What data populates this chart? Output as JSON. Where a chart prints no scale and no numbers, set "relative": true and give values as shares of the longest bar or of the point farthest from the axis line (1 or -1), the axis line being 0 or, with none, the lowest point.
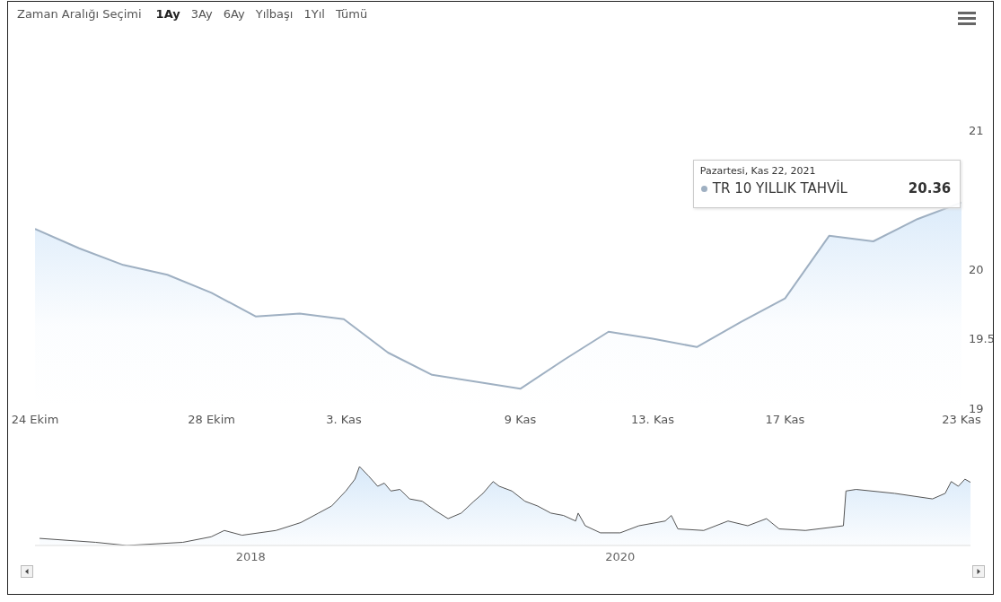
{
  "chart_data": [
    {
      "type": "area",
      "categories": [
        "24 Ekim",
        null,
        null,
        null,
        "28 Ekim",
        null,
        null,
        "3. Kas",
        null,
        null,
        null,
        "9 Kas",
        null,
        null,
        "13. Kas",
        null,
        null,
        "17 Kas",
        null,
        null,
        null,
        "23 Kas"
      ],
      "series": [
        {
          "name": "TR 10 YILLIK TAHVİL",
          "color": "#9fb0c2",
          "values": [
            20.29,
            20.15,
            20.03,
            19.96,
            19.83,
            19.66,
            19.68,
            19.64,
            19.4,
            19.24,
            19.19,
            19.14,
            19.35,
            19.55,
            19.5,
            19.44,
            19.62,
            19.79,
            20.24,
            20.2,
            20.36,
            20.48
          ],
          "value_labels": [
            null,
            null,
            null,
            null,
            null,
            null,
            null,
            null,
            null,
            null,
            null,
            null,
            null,
            null,
            null,
            null,
            null,
            null,
            null,
            null,
            "20.36",
            null
          ]
        }
      ],
      "ylim": [
        19,
        21
      ],
      "yticks": [
        19,
        19.5,
        20,
        21
      ],
      "annotations": [
        "Zaman Aralığı Seçimi",
        "1Ay",
        "3Ay",
        "6Ay",
        "Yılbaşı",
        "1Yıl",
        "Tümü",
        "Pazartesi, Kas 22, 2021"
      ]
    },
    {
      "type": "area",
      "relative": true,
      "color": "#555555",
      "tick_labels": "x",
      "xlim": [
        "2016-11",
        "2021-11-23"
      ],
      "xticks": [
        "2018",
        "2020"
      ],
      "x": [
        "2016-11-10",
        "2017-03-01",
        "2017-05-01",
        "2017-08-20",
        "2017-10-15",
        "2017-11-10",
        "2017-12-15",
        "2018-02-20",
        "2018-04-10",
        "2018-05-15",
        "2018-06-10",
        "2018-07-08",
        "2018-07-26",
        "2018-08-04",
        "2018-08-22",
        "2018-09-09",
        "2018-09-22",
        "2018-10-05",
        "2018-10-23",
        "2018-11-11",
        "2018-12-06",
        "2019-01-01",
        "2019-01-26",
        "2019-02-21",
        "2019-03-18",
        "2019-04-05",
        "2019-04-25",
        "2019-05-07",
        "2019-06-01",
        "2019-06-27",
        "2019-07-22",
        "2019-08-17",
        "2019-09-11",
        "2019-10-05",
        "2019-10-10",
        "2019-10-24",
        "2019-11-23",
        "2020-01-01",
        "2020-02-07",
        "2020-03-30",
        "2020-04-11",
        "2020-04-24",
        "2020-06-14",
        "2020-08-01",
        "2020-09-09",
        "2020-10-16",
        "2020-11-10",
        "2021-01-01",
        "2021-02-21",
        "2021-03-17",
        "2021-03-22",
        "2021-04-11",
        "2021-06-26",
        "2021-09-09",
        "2021-10-04",
        "2021-10-16",
        "2021-10-30",
        "2021-11-12",
        "2021-11-23"
      ],
      "values": [
        0.09,
        0.04,
        0,
        0.04,
        0.11,
        0.19,
        0.13,
        0.19,
        0.29,
        0.41,
        0.5,
        0.69,
        0.84,
        1,
        0.88,
        0.75,
        0.79,
        0.69,
        0.71,
        0.59,
        0.56,
        0.44,
        0.34,
        0.41,
        0.56,
        0.66,
        0.81,
        0.75,
        0.69,
        0.56,
        0.5,
        0.41,
        0.38,
        0.31,
        0.41,
        0.25,
        0.16,
        0.16,
        0.25,
        0.31,
        0.38,
        0.21,
        0.19,
        0.31,
        0.25,
        0.34,
        0.21,
        0.19,
        0.23,
        0.25,
        0.69,
        0.71,
        0.66,
        0.59,
        0.66,
        0.81,
        0.75,
        0.84,
        0.8
      ]
    }
  ]
}
